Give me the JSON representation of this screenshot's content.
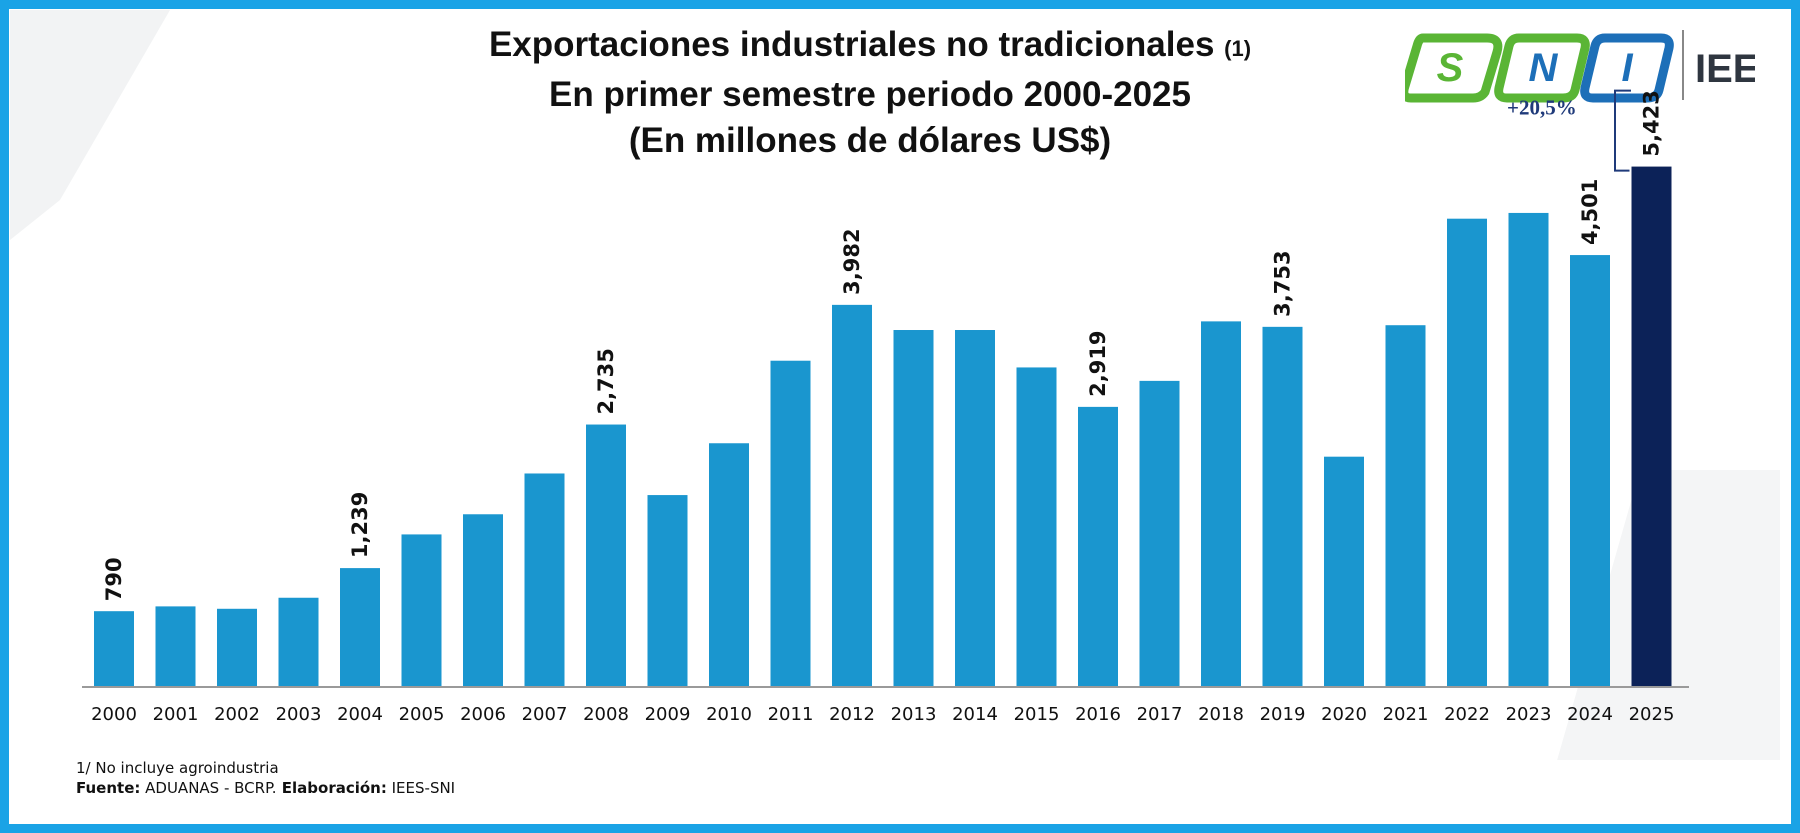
{
  "title": {
    "line1": "Exportaciones industriales no tradicionales",
    "line1_note": "(1)",
    "line2": "En primer semestre periodo 2000-2025",
    "line3": "(En millones de dólares US$)"
  },
  "logo": {
    "letters": [
      "S",
      "N",
      "I"
    ],
    "brand": "IEES",
    "colors": {
      "green": "#5ab535",
      "blue": "#1d6fb8",
      "grey": "#2f3640"
    }
  },
  "chart_data": {
    "type": "bar",
    "categories": [
      "2000",
      "2001",
      "2002",
      "2003",
      "2004",
      "2005",
      "2006",
      "2007",
      "2008",
      "2009",
      "2010",
      "2011",
      "2012",
      "2013",
      "2014",
      "2015",
      "2016",
      "2017",
      "2018",
      "2019",
      "2020",
      "2021",
      "2022",
      "2023",
      "2024",
      "2025"
    ],
    "values": [
      790,
      840,
      815,
      930,
      1239,
      1590,
      1800,
      2225,
      2735,
      2000,
      2540,
      3400,
      3982,
      3720,
      3720,
      3330,
      2919,
      3190,
      3810,
      3753,
      2400,
      3770,
      4880,
      4940,
      4501,
      5423
    ],
    "data_labels": {
      "2000": "790",
      "2004": "1,239",
      "2008": "2,735",
      "2012": "3,982",
      "2016": "2,919",
      "2019": "3,753",
      "2024": "4,501",
      "2025": "5,423"
    },
    "annotation": "+20,5%",
    "colors": {
      "bar": "#1a96cf",
      "highlight": "#0c2258",
      "annotation": "#1f3a7a",
      "axis": "#9a9a9a"
    },
    "highlight_category": "2025",
    "ylim": [
      0,
      5700
    ],
    "grid": false,
    "legend": "none"
  },
  "footer": {
    "note": "1/ No incluye agroindustria",
    "source_label": "Fuente:",
    "source_value": " ADUANAS - BCRP.",
    "elab_label": " Elaboración:",
    "elab_value": " IEES-SNI"
  }
}
